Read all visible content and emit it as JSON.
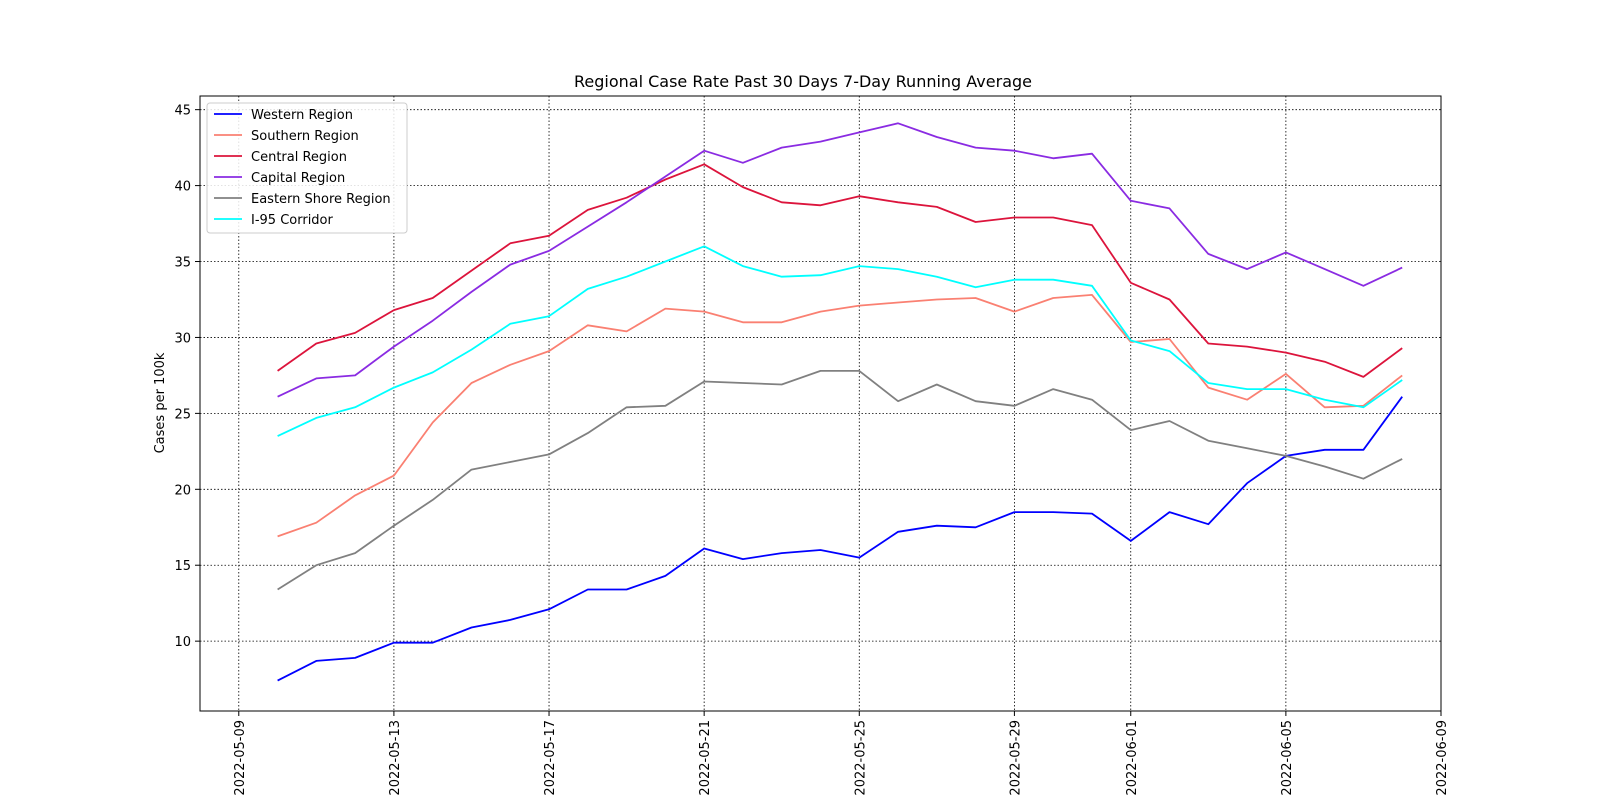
{
  "chart_data": {
    "type": "line",
    "title": "Regional Case Rate  Past 30 Days 7-Day Running Average",
    "xlabel": "",
    "ylabel": "Cases per 100k",
    "x_ticks": [
      "2022-05-09",
      "2022-05-13",
      "2022-05-17",
      "2022-05-21",
      "2022-05-25",
      "2022-05-29",
      "2022-06-01",
      "2022-06-05",
      "2022-06-09"
    ],
    "y_ticks": [
      10,
      15,
      20,
      25,
      30,
      35,
      40,
      45
    ],
    "xlim": [
      "2022-05-08",
      "2022-06-09"
    ],
    "ylim": [
      5.4,
      45.9
    ],
    "grid": true,
    "legend_position": "top-left",
    "x": [
      "2022-05-10",
      "2022-05-11",
      "2022-05-12",
      "2022-05-13",
      "2022-05-14",
      "2022-05-15",
      "2022-05-16",
      "2022-05-17",
      "2022-05-18",
      "2022-05-19",
      "2022-05-20",
      "2022-05-21",
      "2022-05-22",
      "2022-05-23",
      "2022-05-24",
      "2022-05-25",
      "2022-05-26",
      "2022-05-27",
      "2022-05-28",
      "2022-05-29",
      "2022-05-30",
      "2022-05-31",
      "2022-06-01",
      "2022-06-02",
      "2022-06-03",
      "2022-06-04",
      "2022-06-05",
      "2022-06-06",
      "2022-06-07",
      "2022-06-08"
    ],
    "series": [
      {
        "name": "Western Region",
        "color": "#0000ff",
        "values": [
          7.4,
          8.7,
          8.9,
          9.9,
          9.9,
          10.9,
          11.4,
          12.1,
          13.4,
          13.4,
          14.3,
          16.1,
          15.4,
          15.8,
          16.0,
          15.5,
          17.2,
          17.6,
          17.5,
          18.5,
          18.5,
          18.4,
          16.6,
          18.5,
          17.7,
          20.4,
          22.2,
          22.6,
          22.6,
          26.1
        ]
      },
      {
        "name": "Southern Region",
        "color": "#fa8072",
        "values": [
          16.9,
          17.8,
          19.6,
          20.9,
          24.4,
          27.0,
          28.2,
          29.1,
          30.8,
          30.4,
          31.9,
          31.7,
          31.0,
          31.0,
          31.7,
          32.1,
          32.3,
          32.5,
          32.6,
          31.7,
          32.6,
          32.8,
          29.7,
          29.9,
          26.7,
          25.9,
          27.6,
          25.4,
          25.5,
          27.5
        ]
      },
      {
        "name": "Central Region",
        "color": "#dc143c",
        "values": [
          27.8,
          29.6,
          30.3,
          31.8,
          32.6,
          34.4,
          36.2,
          36.7,
          38.4,
          39.2,
          40.4,
          41.4,
          39.9,
          38.9,
          38.7,
          39.3,
          38.9,
          38.6,
          37.6,
          37.9,
          37.9,
          37.4,
          33.6,
          32.5,
          29.6,
          29.4,
          29.0,
          28.4,
          27.4,
          29.3
        ]
      },
      {
        "name": "Capital Region",
        "color": "#8a2be2",
        "values": [
          26.1,
          27.3,
          27.5,
          29.4,
          31.1,
          33.0,
          34.8,
          35.7,
          37.3,
          38.9,
          40.6,
          42.3,
          41.5,
          42.5,
          42.9,
          43.5,
          44.1,
          43.2,
          42.5,
          42.3,
          41.8,
          42.1,
          39.0,
          38.5,
          35.5,
          34.5,
          35.6,
          34.5,
          33.4,
          34.6
        ]
      },
      {
        "name": "Eastern Shore Region",
        "color": "#808080",
        "values": [
          13.4,
          15.0,
          15.8,
          17.6,
          19.3,
          21.3,
          21.8,
          22.3,
          23.7,
          25.4,
          25.5,
          27.1,
          27.0,
          26.9,
          27.8,
          27.8,
          25.8,
          26.9,
          25.8,
          25.5,
          26.6,
          25.9,
          23.9,
          24.5,
          23.2,
          22.7,
          22.2,
          21.5,
          20.7,
          22.0
        ]
      },
      {
        "name": "I-95 Corridor",
        "color": "#00ffff",
        "values": [
          23.5,
          24.7,
          25.4,
          26.7,
          27.7,
          29.2,
          30.9,
          31.4,
          33.2,
          34.0,
          35.0,
          36.0,
          34.7,
          34.0,
          34.1,
          34.7,
          34.5,
          34.0,
          33.3,
          33.8,
          33.8,
          33.4,
          29.8,
          29.1,
          27.0,
          26.6,
          26.6,
          25.9,
          25.4,
          27.2
        ]
      }
    ]
  }
}
